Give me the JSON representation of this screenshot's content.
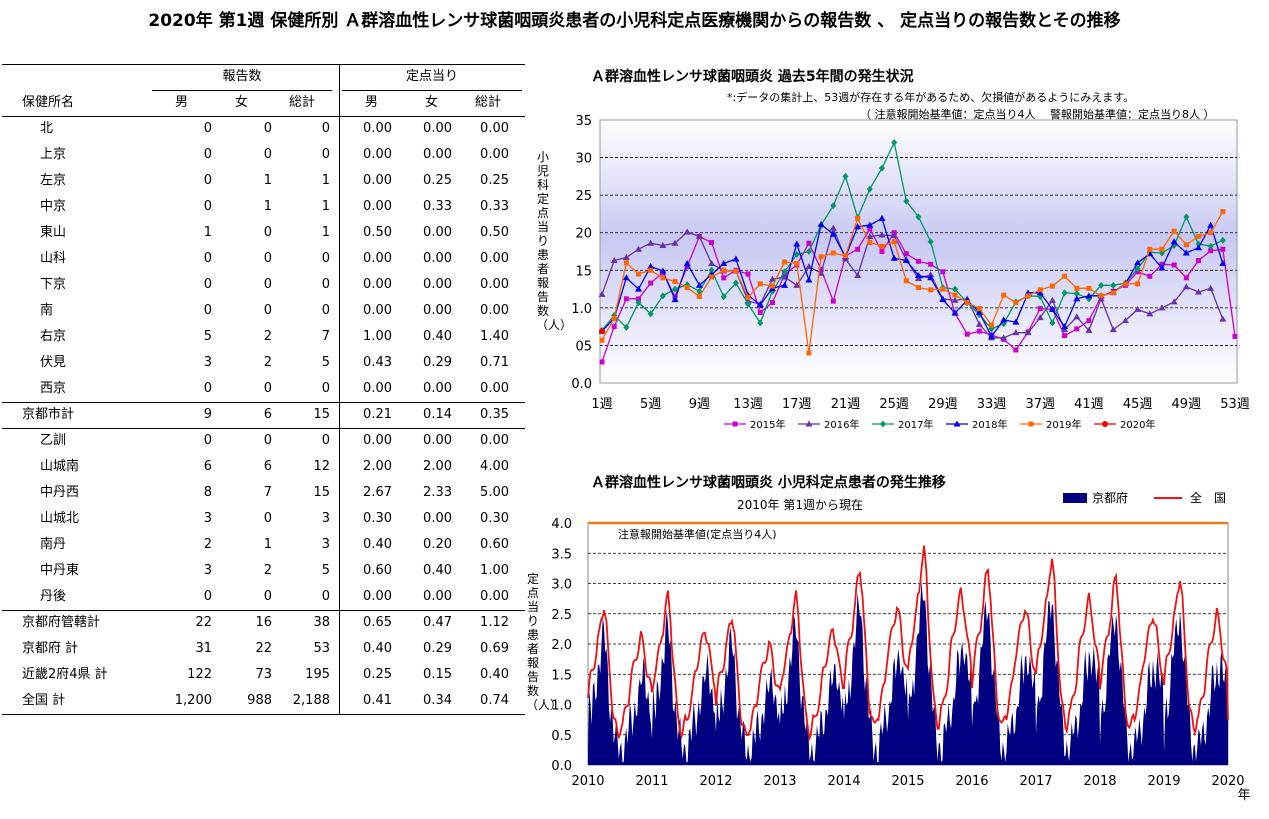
{
  "page_title": "2020年 第1週 保健所別 Ａ群溶血性レンサ球菌咽頭炎患者の小児科定点医療機関からの報告数 、 定点当りの報告数とその推移",
  "table": {
    "group_headers": {
      "reports": "報告数",
      "per_sentinel": "定点当り"
    },
    "col_headers": {
      "name": "保健所名",
      "m": "男",
      "f": "女",
      "total": "総計",
      "pm": "男",
      "pf": "女",
      "ptotal": "総計"
    },
    "rows": [
      {
        "name": "北",
        "m": "0",
        "f": "0",
        "t": "0",
        "pm": "0.00",
        "pf": "0.00",
        "pt": "0.00"
      },
      {
        "name": "上京",
        "m": "0",
        "f": "0",
        "t": "0",
        "pm": "0.00",
        "pf": "0.00",
        "pt": "0.00"
      },
      {
        "name": "左京",
        "m": "0",
        "f": "1",
        "t": "1",
        "pm": "0.00",
        "pf": "0.25",
        "pt": "0.25"
      },
      {
        "name": "中京",
        "m": "0",
        "f": "1",
        "t": "1",
        "pm": "0.00",
        "pf": "0.33",
        "pt": "0.33"
      },
      {
        "name": "東山",
        "m": "1",
        "f": "0",
        "t": "1",
        "pm": "0.50",
        "pf": "0.00",
        "pt": "0.50"
      },
      {
        "name": "山科",
        "m": "0",
        "f": "0",
        "t": "0",
        "pm": "0.00",
        "pf": "0.00",
        "pt": "0.00"
      },
      {
        "name": "下京",
        "m": "0",
        "f": "0",
        "t": "0",
        "pm": "0.00",
        "pf": "0.00",
        "pt": "0.00"
      },
      {
        "name": "南",
        "m": "0",
        "f": "0",
        "t": "0",
        "pm": "0.00",
        "pf": "0.00",
        "pt": "0.00"
      },
      {
        "name": "右京",
        "m": "5",
        "f": "2",
        "t": "7",
        "pm": "1.00",
        "pf": "0.40",
        "pt": "1.40"
      },
      {
        "name": "伏見",
        "m": "3",
        "f": "2",
        "t": "5",
        "pm": "0.43",
        "pf": "0.29",
        "pt": "0.71"
      },
      {
        "name": "西京",
        "m": "0",
        "f": "0",
        "t": "0",
        "pm": "0.00",
        "pf": "0.00",
        "pt": "0.00"
      },
      {
        "name": "京都市計",
        "m": "9",
        "f": "6",
        "t": "15",
        "pm": "0.21",
        "pf": "0.14",
        "pt": "0.35",
        "total": true
      },
      {
        "name": "乙訓",
        "m": "0",
        "f": "0",
        "t": "0",
        "pm": "0.00",
        "pf": "0.00",
        "pt": "0.00"
      },
      {
        "name": "山城南",
        "m": "6",
        "f": "6",
        "t": "12",
        "pm": "2.00",
        "pf": "2.00",
        "pt": "4.00"
      },
      {
        "name": "中丹西",
        "m": "8",
        "f": "7",
        "t": "15",
        "pm": "2.67",
        "pf": "2.33",
        "pt": "5.00"
      },
      {
        "name": "山城北",
        "m": "3",
        "f": "0",
        "t": "3",
        "pm": "0.30",
        "pf": "0.00",
        "pt": "0.30"
      },
      {
        "name": "南丹",
        "m": "2",
        "f": "1",
        "t": "3",
        "pm": "0.40",
        "pf": "0.20",
        "pt": "0.60"
      },
      {
        "name": "中丹東",
        "m": "3",
        "f": "2",
        "t": "5",
        "pm": "0.60",
        "pf": "0.40",
        "pt": "1.00"
      },
      {
        "name": "丹後",
        "m": "0",
        "f": "0",
        "t": "0",
        "pm": "0.00",
        "pf": "0.00",
        "pt": "0.00"
      },
      {
        "name": "京都府管轄計",
        "m": "22",
        "f": "16",
        "t": "38",
        "pm": "0.65",
        "pf": "0.47",
        "pt": "1.12",
        "total": true
      },
      {
        "name": "京都府 計",
        "m": "31",
        "f": "22",
        "t": "53",
        "pm": "0.40",
        "pf": "0.29",
        "pt": "0.69",
        "total": true
      },
      {
        "name": "近畿2府4県 計",
        "m": "122",
        "f": "73",
        "t": "195",
        "pm": "0.25",
        "pf": "0.15",
        "pt": "0.40",
        "total": true
      },
      {
        "name": "全国 計",
        "m": "1,200",
        "f": "988",
        "t": "2,188",
        "pm": "0.41",
        "pf": "0.34",
        "pt": "0.74",
        "total": true
      }
    ]
  },
  "chart_data": [
    {
      "type": "line",
      "title": "Ａ群溶血性レンサ球菌咽頭炎 過去5年間の発生状況",
      "note1": "*:データの集計上、53週が存在する年があるため、欠損値があるようにみえます。",
      "note2": "（ 注意報開始基準値：定点当り4人　 警報開始基準値：定点当り8人 ）",
      "ylabel": "小児科定点当り患者報告数（人）",
      "ylim": [
        0,
        35
      ],
      "yticks": [
        "0.0",
        "0.5",
        "1.0",
        "1.5",
        "2.0",
        "2.5",
        "3.0",
        "3.5"
      ],
      "ytick_labels": [
        "0.0",
        "05",
        "1.0",
        "15",
        "20",
        "25",
        "30",
        "35"
      ],
      "xlabels": [
        "1週",
        "5週",
        "9週",
        "13週",
        "17週",
        "21週",
        "25週",
        "29週",
        "33週",
        "37週",
        "41週",
        "45週",
        "49週",
        "53週"
      ],
      "x_label_weeks": [
        1,
        5,
        9,
        13,
        17,
        21,
        25,
        29,
        33,
        37,
        41,
        45,
        49,
        53
      ],
      "series": [
        {
          "name": "2015年",
          "color": "#cc00cc",
          "marker": "square",
          "values": [
            2.8,
            7.5,
            11.2,
            11.2,
            13.3,
            14.7,
            11.5,
            15.5,
            19.5,
            18.7,
            14.0,
            15.0,
            14.5,
            9.4,
            10.7,
            14.4,
            15.7,
            18.6,
            15.1,
            10.9,
            16.9,
            17.8,
            20.5,
            17.5,
            20.0,
            17.2,
            16.2,
            15.8,
            14.8,
            9.3,
            6.5,
            6.9,
            6.4,
            5.8,
            4.4,
            6.8,
            9.9,
            9.8,
            6.3,
            7.2,
            8.3,
            11.5,
            12.2,
            13.0,
            14.8,
            14.2,
            15.8,
            15.7,
            14.0,
            16.3,
            17.6,
            17.8,
            6.2
          ]
        },
        {
          "name": "2016年",
          "color": "#6633aa",
          "marker": "triangle",
          "values": [
            11.8,
            16.3,
            16.7,
            17.8,
            18.6,
            18.3,
            18.6,
            20.1,
            19.5,
            15.9,
            14.9,
            14.9,
            10.9,
            10.5,
            13.8,
            14.1,
            13.0,
            15.5,
            14.6,
            20.6,
            16.5,
            14.3,
            19.5,
            19.7,
            19.6,
            16.4,
            13.9,
            14.4,
            11.2,
            11.0,
            11.2,
            7.8,
            6.0,
            6.0,
            6.7,
            6.7,
            8.7,
            11.0,
            7.1,
            8.8,
            7.0,
            11.2,
            7.1,
            8.3,
            9.8,
            9.2,
            10.0,
            10.8,
            12.8,
            12.1,
            12.6,
            8.5,
            null
          ]
        },
        {
          "name": "2017年",
          "color": "#009966",
          "marker": "diamond",
          "values": [
            7.0,
            9.0,
            7.4,
            10.7,
            9.2,
            11.6,
            12.5,
            13.1,
            12.2,
            15.0,
            11.5,
            13.3,
            10.5,
            8.0,
            12.2,
            14.8,
            17.1,
            17.5,
            21.0,
            23.6,
            27.5,
            22.0,
            25.8,
            28.6,
            32.0,
            24.2,
            22.1,
            18.8,
            12.7,
            12.5,
            10.7,
            9.1,
            7.2,
            7.9,
            10.8,
            11.6,
            11.5,
            8.0,
            12.0,
            11.9,
            11.2,
            13.0,
            13.0,
            13.3,
            15.2,
            17.4,
            17.3,
            18.3,
            22.1,
            18.5,
            18.2,
            19.0,
            null
          ]
        },
        {
          "name": "2018年",
          "color": "#0000ee",
          "marker": "triangle",
          "values": [
            6.9,
            8.6,
            14.0,
            12.5,
            15.5,
            14.9,
            11.1,
            15.9,
            13.0,
            14.4,
            15.9,
            16.5,
            11.7,
            10.4,
            12.6,
            13.0,
            18.5,
            13.7,
            21.1,
            19.8,
            16.8,
            20.8,
            21.0,
            21.9,
            16.6,
            16.3,
            14.3,
            14.0,
            11.1,
            9.3,
            11.0,
            9.4,
            6.2,
            8.4,
            8.1,
            12.0,
            12.0,
            9.8,
            7.5,
            11.2,
            11.6,
            11.6,
            12.1,
            13.2,
            16.0,
            17.2,
            15.3,
            18.8,
            17.3,
            18.0,
            21.0,
            15.9,
            null
          ]
        },
        {
          "name": "2019年",
          "color": "#ff6600",
          "marker": "square",
          "values": [
            5.7,
            8.6,
            16.0,
            14.5,
            15.0,
            14.0,
            13.5,
            12.7,
            11.5,
            14.1,
            15.0,
            14.9,
            11.4,
            13.2,
            12.9,
            16.1,
            15.9,
            4.0,
            16.8,
            17.3,
            16.9,
            21.9,
            18.7,
            18.2,
            18.8,
            13.6,
            12.7,
            12.4,
            12.5,
            11.7,
            10.7,
            9.9,
            7.7,
            11.7,
            10.7,
            11.6,
            12.4,
            12.9,
            14.2,
            12.6,
            12.6,
            11.6,
            12.0,
            13.2,
            13.2,
            17.8,
            17.8,
            20.2,
            18.4,
            19.5,
            20.0,
            22.8,
            null
          ]
        },
        {
          "name": "2020年",
          "color": "#ee0000",
          "marker": "circle",
          "values": [
            6.9
          ]
        }
      ]
    },
    {
      "type": "area",
      "title": "Ａ群溶血性レンサ球菌咽頭炎 小児科定点患者の発生推移",
      "subtitle": "2010年 第1週から現在",
      "ylabel": "定点当り患者報告数（人）",
      "ylim": [
        0,
        4.0
      ],
      "yticks": [
        "0.0",
        "0.5",
        "1.0",
        "1.5",
        "2.0",
        "2.5",
        "3.0",
        "3.5",
        "4.0"
      ],
      "xticks": [
        "2010",
        "2011",
        "2012",
        "2013",
        "2014",
        "2015",
        "2016",
        "2017",
        "2018",
        "2019",
        "2020"
      ],
      "xunit": "年",
      "threshold_label": "注意報開始基準値(定点当り4人)",
      "threshold": 4.0,
      "series": [
        {
          "name": "京都府",
          "color": "#000080",
          "kind": "area"
        },
        {
          "name": "全　国",
          "color": "#ee1111",
          "kind": "line"
        }
      ],
      "kyoto_yearly_profile": [
        0.3,
        1.0,
        1.0,
        0.8,
        1.2,
        1.3,
        1.5,
        1.6,
        1.8,
        1.9,
        2.0,
        2.2,
        2.3,
        2.4,
        2.2,
        2.0,
        1.7,
        1.4,
        1.2,
        1.0,
        0.8,
        0.6,
        0.5,
        0.4,
        0.3,
        0.3,
        0.3,
        0.3,
        0.2,
        0.3,
        0.4,
        0.5,
        0.5,
        0.6,
        0.7,
        0.8,
        0.8,
        0.9,
        1.1,
        1.2,
        1.3,
        1.3,
        1.3,
        1.5,
        1.5,
        1.6,
        1.7,
        1.6,
        1.4,
        1.3,
        1.2,
        1.1
      ],
      "national_yearly_profile": [
        1.3,
        1.5,
        1.7,
        1.8,
        1.9,
        2.0,
        2.1,
        2.2,
        2.4,
        2.5,
        2.7,
        2.9,
        3.0,
        3.1,
        2.9,
        2.7,
        2.3,
        2.0,
        1.7,
        1.4,
        1.1,
        0.9,
        0.8,
        0.7,
        0.6,
        0.6,
        0.7,
        0.8,
        0.8,
        0.9,
        1.0,
        1.1,
        1.2,
        1.3,
        1.5,
        1.7,
        1.8,
        1.9,
        2.0,
        2.1,
        2.2,
        2.3,
        2.4,
        2.5,
        2.4,
        2.3,
        2.2,
        2.0,
        1.8,
        1.7,
        1.6,
        1.5
      ],
      "yearly_scale": [
        0.85,
        0.9,
        0.8,
        0.9,
        1.05,
        1.15,
        1.05,
        1.1,
        1.0,
        1.0
      ],
      "last_points": {
        "kyoto": 0.69,
        "national": 0.74
      }
    }
  ]
}
